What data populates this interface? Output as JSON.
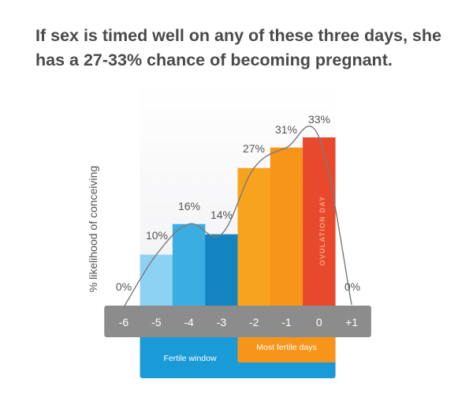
{
  "title_lines": [
    "If sex is timed well on any of these three days, she",
    "has a 27-33% chance of becoming pregnant."
  ],
  "chart_data": {
    "type": "bar",
    "title": "If sex is timed well on any of these three days, she has a 27-33% chance of becoming pregnant.",
    "ylabel": "% likelihood of conceiving",
    "ylim": [
      0,
      33
    ],
    "categories": [
      "-6",
      "-5",
      "-4",
      "-3",
      "-2",
      "-1",
      "0",
      "+1"
    ],
    "values": [
      0,
      10,
      16,
      14,
      27,
      31,
      33,
      0
    ],
    "value_labels": [
      "0%",
      "10%",
      "16%",
      "14%",
      "27%",
      "31%",
      "33%",
      "0%"
    ],
    "bar_colors": [
      "#8c8c8c",
      "#8dd2f2",
      "#3aaee3",
      "#1383c1",
      "#f8a31d",
      "#f7951a",
      "#e8492d",
      "#8c8c8c"
    ],
    "annotations": {
      "ovulation_day": "OVULATION DAY",
      "fertile_window": "Fertile window",
      "most_fertile_days": "Most fertile days"
    },
    "grid": false,
    "legend": "none"
  },
  "colors": {
    "axis_band": "#8c8c8c",
    "axis_text": "#ffffff",
    "fertile_window": "#1a9ad6",
    "most_fertile": "#f7951a",
    "curve": "#7a7a7a",
    "label_text": "#555555",
    "column_shade": "#f1f1f4"
  }
}
